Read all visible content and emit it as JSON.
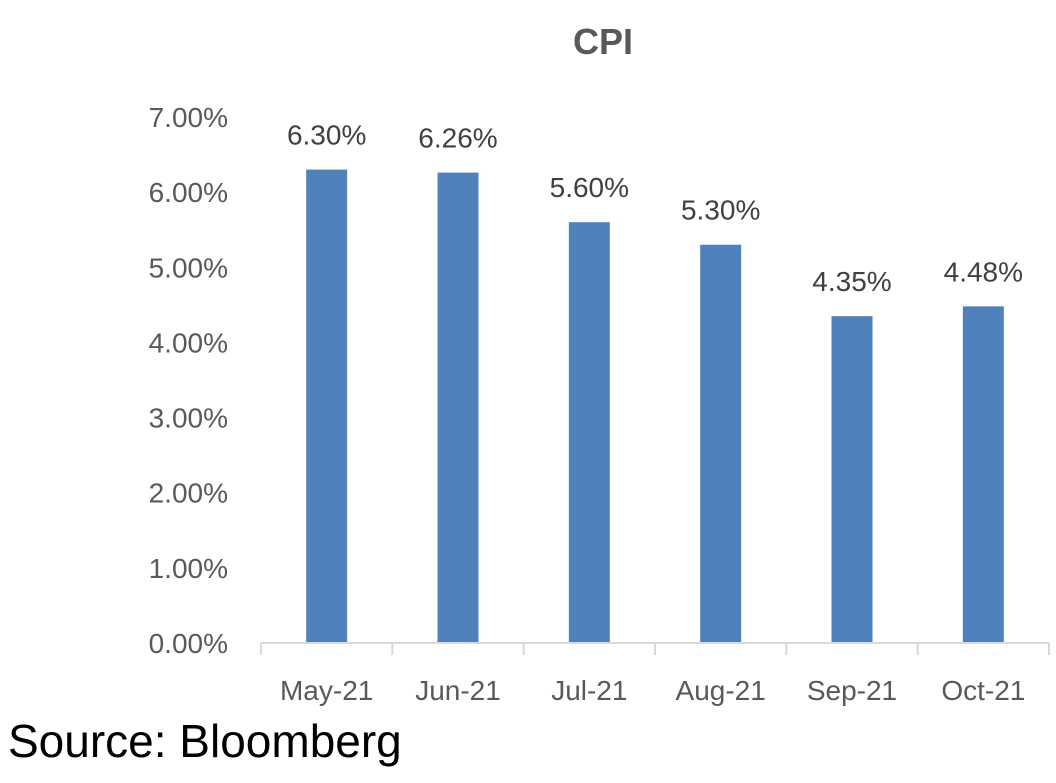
{
  "chart_data": {
    "type": "bar",
    "title": "CPI",
    "categories": [
      "May-21",
      "Jun-21",
      "Jul-21",
      "Aug-21",
      "Sep-21",
      "Oct-21"
    ],
    "series": [
      {
        "values": [
          6.3,
          6.26,
          5.6,
          5.3,
          4.35,
          4.48
        ]
      }
    ],
    "data_labels": [
      "6.30%",
      "6.26%",
      "5.60%",
      "5.30%",
      "4.35%",
      "4.48%"
    ],
    "y_ticks": [
      "0.00%",
      "1.00%",
      "2.00%",
      "3.00%",
      "4.00%",
      "5.00%",
      "6.00%",
      "7.00%"
    ],
    "ylim": [
      0,
      7
    ],
    "grid": false,
    "legend": "none",
    "bar_color": "#4F81BD",
    "axis_color": "#D9D9D9"
  },
  "source_text": "Source: Bloomberg"
}
